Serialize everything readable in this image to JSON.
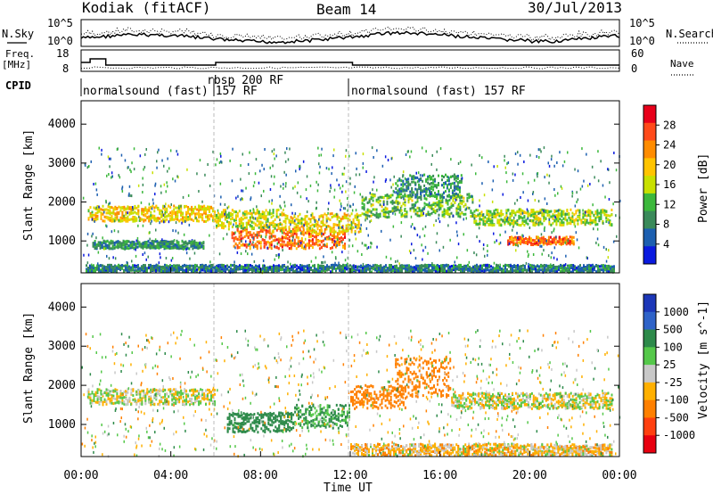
{
  "header": {
    "radar": "Kodiak (fitACF)",
    "beam": "Beam 14",
    "date": "30/Jul/2013"
  },
  "noise_panel": {
    "left_label": "N.Sky",
    "right_label": "N.Search",
    "left_ticks": [
      "10^5",
      "10^0"
    ],
    "right_ticks": [
      "10^5",
      "10^0"
    ]
  },
  "freq_panel": {
    "left_label_1": "Freq.",
    "left_label_2": "[MHz]",
    "right_label": "Nave",
    "left_ticks": [
      "18",
      "8"
    ],
    "right_ticks": [
      "60",
      "0"
    ]
  },
  "cpid": {
    "label": "CPID",
    "segments": [
      {
        "text": "normalsound (fast) 157 RF",
        "start_h": 0,
        "end_h": 6
      },
      {
        "text": "rbsp 200 RF",
        "start_h": 6,
        "end_h": 12
      },
      {
        "text": "normalsound (fast) 157 RF",
        "start_h": 12,
        "end_h": 24
      }
    ]
  },
  "power_colorbar": {
    "label": "Power [dB]",
    "ticks": [
      "28",
      "24",
      "20",
      "16",
      "12",
      "8",
      "4"
    ],
    "colors": [
      "#e8001a",
      "#ff4a1a",
      "#ff8c00",
      "#ffc400",
      "#c8e000",
      "#3cb83c",
      "#3a8a5a",
      "#1c5fb0",
      "#0a1adf"
    ]
  },
  "velocity_colorbar": {
    "label": "Velocity [m s^-1]",
    "ticks": [
      "1000",
      "500",
      "100",
      "25",
      "-25",
      "-100",
      "-500",
      "-1000"
    ],
    "colors": [
      "#1c37b8",
      "#2f63c8",
      "#2d8a4a",
      "#55c84a",
      "#c8c8c8",
      "#ffb000",
      "#ff8000",
      "#ff4010",
      "#e80010"
    ]
  },
  "axes": {
    "ylabel": "Slant Range [km]",
    "yticks": [
      "4000",
      "3000",
      "2000",
      "1000"
    ],
    "xlabel": "Time UT",
    "xticks": [
      "00:00",
      "04:00",
      "08:00",
      "12:00",
      "16:00",
      "20:00",
      "00:00"
    ]
  },
  "chart_data": [
    {
      "type": "heatmap",
      "title": "Power",
      "xlabel": "Time UT",
      "ylabel": "Slant Range [km]",
      "xlim_hours": [
        0,
        24
      ],
      "ylim_km": [
        180,
        4600
      ],
      "colorbar_label": "Power [dB]",
      "colorbar_range": [
        0,
        30
      ],
      "regions": [
        {
          "t0": 0.3,
          "t1": 6.0,
          "r0": 1500,
          "r1": 1900,
          "val": 18
        },
        {
          "t0": 0.5,
          "t1": 5.5,
          "r0": 800,
          "r1": 1000,
          "val": 8
        },
        {
          "t0": 6.0,
          "t1": 9.0,
          "r0": 1300,
          "r1": 1800,
          "val": 16
        },
        {
          "t0": 6.7,
          "t1": 11.8,
          "r0": 800,
          "r1": 1300,
          "val": 24
        },
        {
          "t0": 9.0,
          "t1": 12.5,
          "r0": 1200,
          "r1": 1700,
          "val": 18
        },
        {
          "t0": 12.5,
          "t1": 17.5,
          "r0": 1600,
          "r1": 2200,
          "val": 12
        },
        {
          "t0": 14.0,
          "t1": 17.0,
          "r0": 2100,
          "r1": 2700,
          "val": 8
        },
        {
          "t0": 17.5,
          "t1": 23.7,
          "r0": 1400,
          "r1": 1800,
          "val": 14
        },
        {
          "t0": 19.0,
          "t1": 22.0,
          "r0": 900,
          "r1": 1100,
          "val": 24
        },
        {
          "t0": 0.2,
          "t1": 23.8,
          "r0": 200,
          "r1": 380,
          "val": 6
        }
      ]
    },
    {
      "type": "heatmap",
      "title": "Velocity",
      "xlabel": "Time UT",
      "ylabel": "Slant Range [km]",
      "xlim_hours": [
        0,
        24
      ],
      "ylim_km": [
        180,
        4600
      ],
      "colorbar_label": "Velocity [m s^-1]",
      "colorbar_range": [
        -1000,
        1000
      ],
      "regions": [
        {
          "t0": 0.3,
          "t1": 6.0,
          "r0": 1500,
          "r1": 1900,
          "val": 0
        },
        {
          "t0": 6.5,
          "t1": 9.5,
          "r0": 800,
          "r1": 1300,
          "val": 200
        },
        {
          "t0": 9.5,
          "t1": 12.0,
          "r0": 900,
          "r1": 1500,
          "val": 120
        },
        {
          "t0": 12.0,
          "t1": 14.5,
          "r0": 1400,
          "r1": 2000,
          "val": -400
        },
        {
          "t0": 14.0,
          "t1": 16.5,
          "r0": 1700,
          "r1": 2700,
          "val": -350
        },
        {
          "t0": 16.5,
          "t1": 23.7,
          "r0": 1400,
          "r1": 1800,
          "val": 0
        },
        {
          "t0": 12.0,
          "t1": 23.7,
          "r0": 200,
          "r1": 500,
          "val": -50
        }
      ]
    }
  ]
}
